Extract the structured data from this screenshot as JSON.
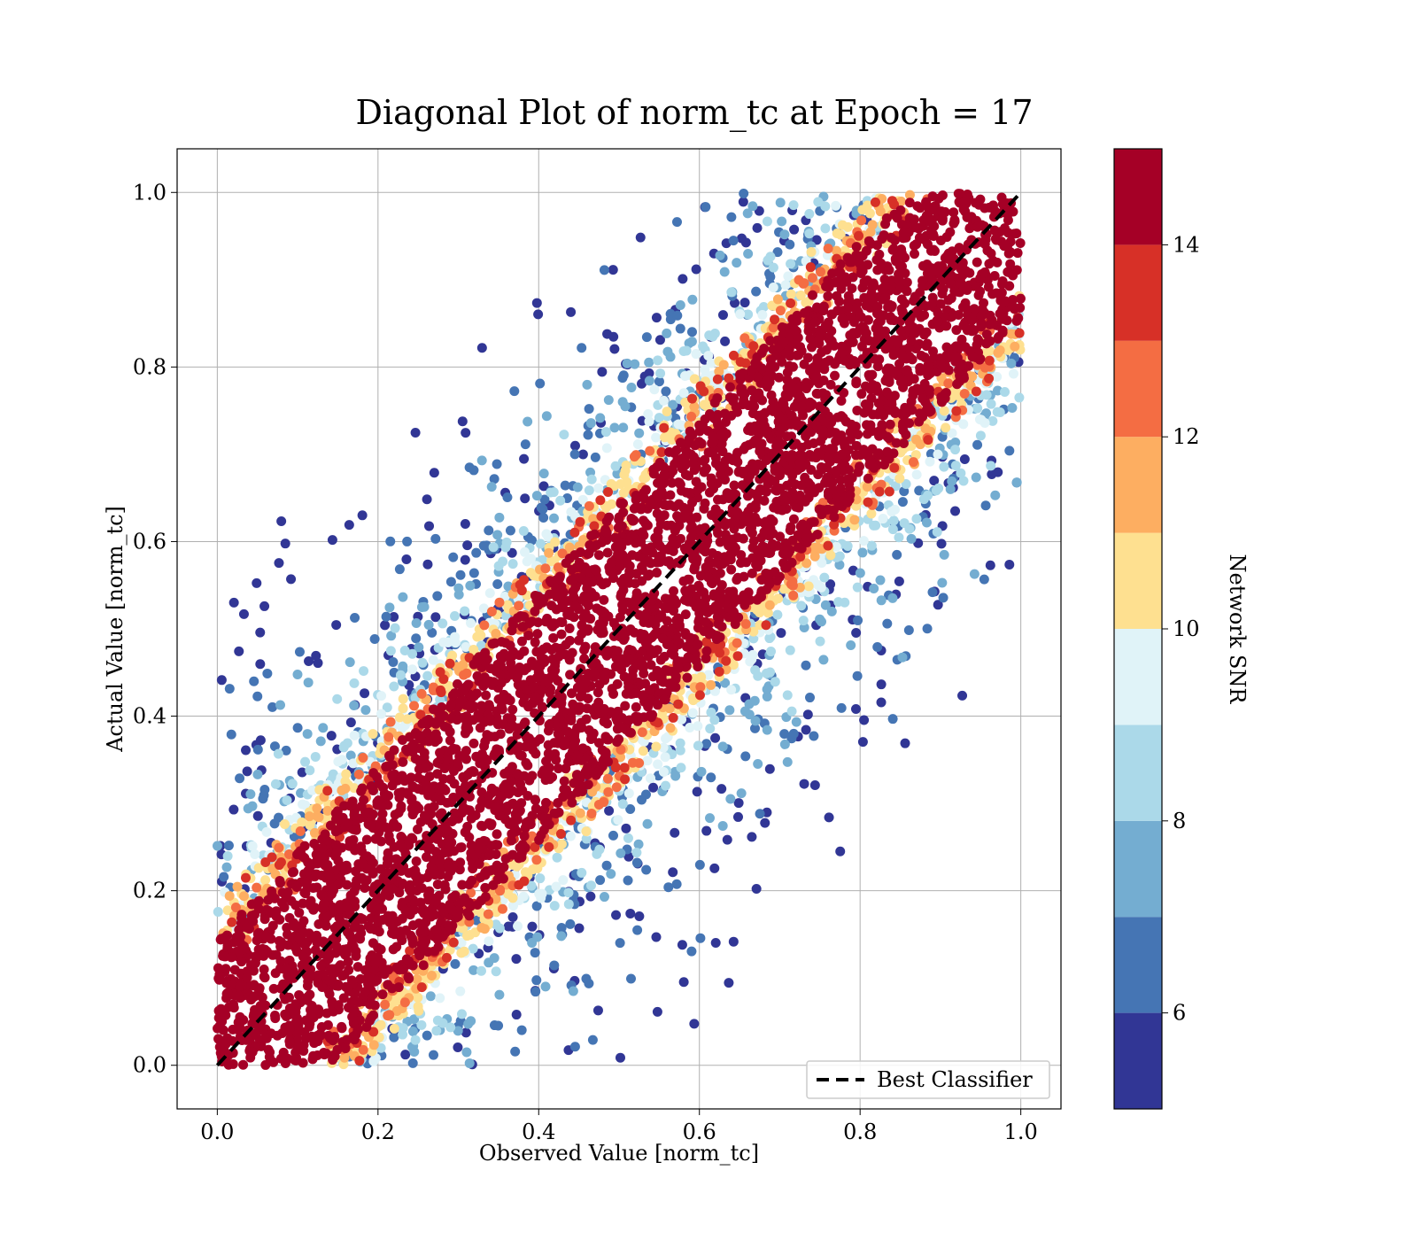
{
  "chart_data": {
    "type": "scatter",
    "title": "Diagonal Plot of norm_tc at Epoch = 17",
    "xlabel": "Observed Value [norm_tc]",
    "ylabel": "Actual Value [norm_tc]",
    "xlim": [
      -0.05,
      1.05
    ],
    "ylim": [
      -0.05,
      1.05
    ],
    "xticks": [
      "0.0",
      "0.2",
      "0.4",
      "0.6",
      "0.8",
      "1.0"
    ],
    "yticks": [
      "0.0",
      "0.2",
      "0.4",
      "0.6",
      "0.8",
      "1.0"
    ],
    "grid": true,
    "colorbar": {
      "label": "Network SNR",
      "range": [
        5,
        15
      ],
      "levels": [
        5,
        6,
        7,
        8,
        9,
        10,
        11,
        12,
        13,
        14,
        15
      ],
      "ticks": [
        "6",
        "8",
        "10",
        "12",
        "14"
      ],
      "colors": [
        "#313695",
        "#4575b4",
        "#74add1",
        "#abd9e9",
        "#e0f3f8",
        "#fee090",
        "#fdae61",
        "#f46d43",
        "#d73027",
        "#a50026"
      ]
    },
    "series": [
      {
        "name": "Best Classifier",
        "kind": "line",
        "style": "dashed",
        "color": "#000000",
        "x": [
          0.0,
          1.0
        ],
        "y": [
          0.0,
          1.0
        ]
      }
    ],
    "scatter_description": {
      "high_snr_band_halfwidth": 0.15,
      "low_snr_spread_max": 0.55
    },
    "legend": {
      "position": "lower-right",
      "entries": [
        "Best Classifier"
      ]
    }
  }
}
